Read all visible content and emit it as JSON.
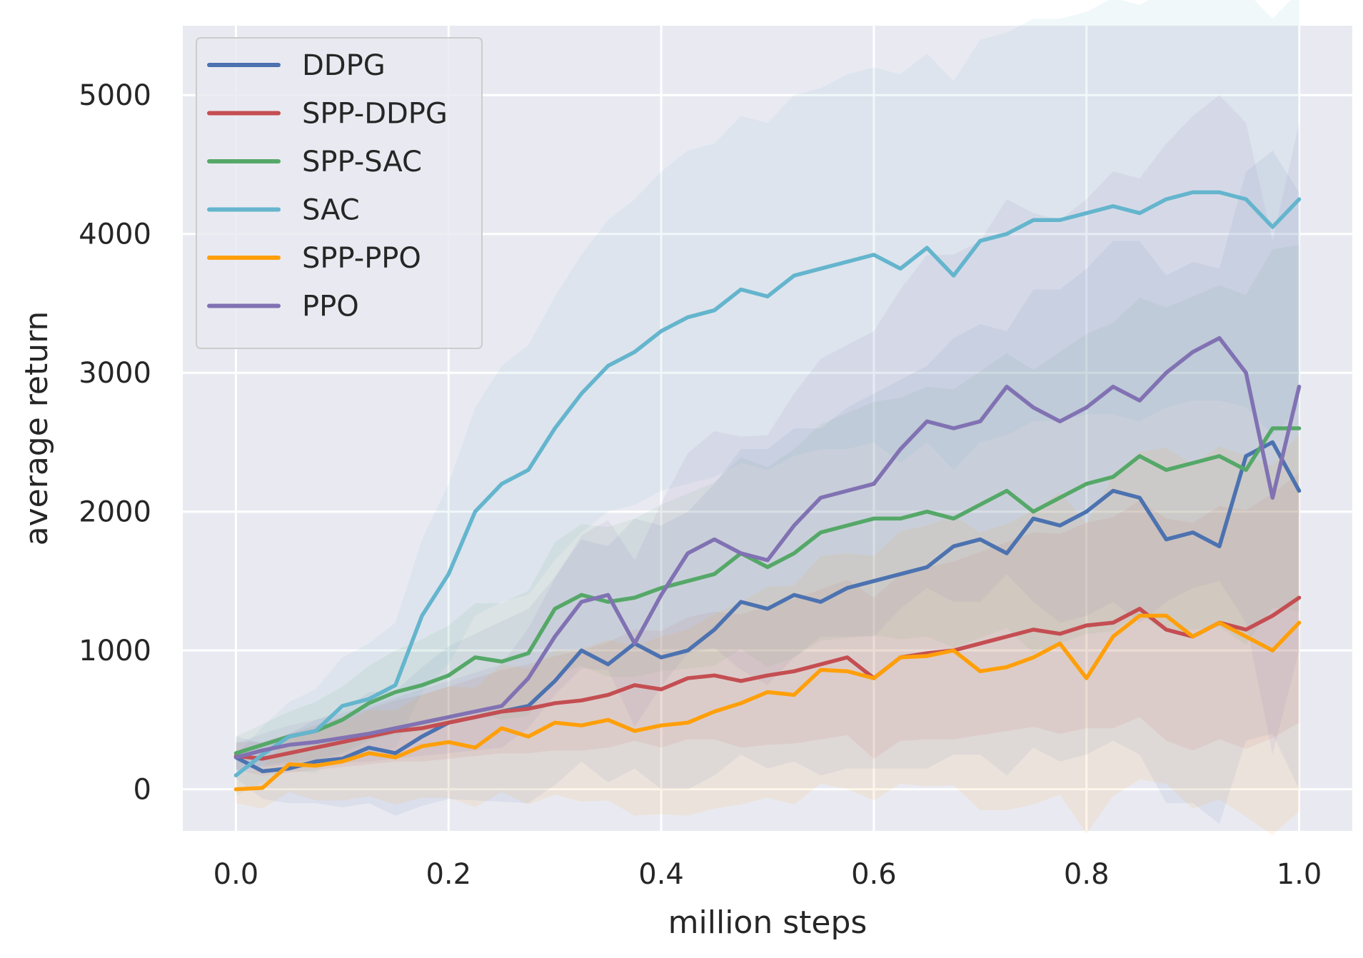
{
  "chart_data": {
    "type": "line",
    "title": "",
    "xlabel": "million steps",
    "ylabel": "average return",
    "xlim": [
      -0.05,
      1.05
    ],
    "ylim": [
      -300,
      5500
    ],
    "xticks": [
      0.0,
      0.2,
      0.4,
      0.6,
      0.8,
      1.0
    ],
    "xtick_labels": [
      "0.0",
      "0.2",
      "0.4",
      "0.6",
      "0.8",
      "1.0"
    ],
    "yticks": [
      0,
      1000,
      2000,
      3000,
      4000,
      5000
    ],
    "ytick_labels": [
      "0",
      "1000",
      "2000",
      "3000",
      "4000",
      "5000"
    ],
    "grid": true,
    "legend_position": "top-left",
    "background": "#e9eaf1",
    "series": [
      {
        "name": "DDPG",
        "color": "#4c72b0",
        "x": [
          0.0,
          0.025,
          0.05,
          0.075,
          0.1,
          0.125,
          0.15,
          0.175,
          0.2,
          0.225,
          0.25,
          0.275,
          0.3,
          0.325,
          0.35,
          0.375,
          0.4,
          0.425,
          0.45,
          0.475,
          0.5,
          0.525,
          0.55,
          0.575,
          0.6,
          0.625,
          0.65,
          0.675,
          0.7,
          0.725,
          0.75,
          0.775,
          0.8,
          0.825,
          0.85,
          0.875,
          0.9,
          0.925,
          0.95,
          0.975,
          1.0
        ],
        "y": [
          230,
          130,
          150,
          200,
          220,
          300,
          260,
          380,
          480,
          520,
          560,
          600,
          780,
          1000,
          900,
          1050,
          950,
          1000,
          1150,
          1350,
          1300,
          1400,
          1350,
          1450,
          1500,
          1550,
          1600,
          1750,
          1800,
          1700,
          1950,
          1900,
          2000,
          2150,
          2100,
          1800,
          1850,
          1750,
          2400,
          2500,
          2150
        ],
        "band": [
          150,
          200,
          250,
          300,
          350,
          400,
          450,
          500,
          550,
          600,
          650,
          700,
          750,
          800,
          850,
          900,
          950,
          1000,
          1050,
          1100,
          1150,
          1200,
          1250,
          1300,
          1350,
          1400,
          1450,
          1500,
          1550,
          1600,
          1650,
          1700,
          1750,
          1800,
          1850,
          1900,
          1950,
          2000,
          2050,
          2100,
          2150
        ]
      },
      {
        "name": "SPP-DDPG",
        "color": "#c44e52",
        "x": [
          0.0,
          0.025,
          0.05,
          0.075,
          0.1,
          0.125,
          0.15,
          0.175,
          0.2,
          0.225,
          0.25,
          0.275,
          0.3,
          0.325,
          0.35,
          0.375,
          0.4,
          0.425,
          0.45,
          0.475,
          0.5,
          0.525,
          0.55,
          0.575,
          0.6,
          0.625,
          0.65,
          0.675,
          0.7,
          0.725,
          0.75,
          0.775,
          0.8,
          0.825,
          0.85,
          0.875,
          0.9,
          0.925,
          0.95,
          0.975,
          1.0
        ],
        "y": [
          240,
          220,
          260,
          300,
          340,
          380,
          420,
          440,
          480,
          520,
          560,
          580,
          620,
          640,
          680,
          750,
          720,
          800,
          820,
          780,
          820,
          850,
          900,
          950,
          800,
          950,
          980,
          1000,
          1050,
          1100,
          1150,
          1120,
          1180,
          1200,
          1300,
          1150,
          1100,
          1200,
          1150,
          1250,
          1380
        ],
        "band": [
          100,
          120,
          140,
          160,
          180,
          200,
          220,
          240,
          260,
          280,
          300,
          320,
          340,
          360,
          380,
          400,
          420,
          440,
          460,
          480,
          500,
          520,
          540,
          560,
          580,
          600,
          620,
          640,
          660,
          680,
          700,
          720,
          740,
          760,
          780,
          800,
          820,
          840,
          860,
          880,
          900
        ]
      },
      {
        "name": "SPP-SAC",
        "color": "#55a868",
        "x": [
          0.0,
          0.025,
          0.05,
          0.075,
          0.1,
          0.125,
          0.15,
          0.175,
          0.2,
          0.225,
          0.25,
          0.275,
          0.3,
          0.325,
          0.35,
          0.375,
          0.4,
          0.425,
          0.45,
          0.475,
          0.5,
          0.525,
          0.55,
          0.575,
          0.6,
          0.625,
          0.65,
          0.675,
          0.7,
          0.725,
          0.75,
          0.775,
          0.8,
          0.825,
          0.85,
          0.875,
          0.9,
          0.925,
          0.95,
          0.975,
          1.0
        ],
        "y": [
          260,
          320,
          380,
          420,
          500,
          620,
          700,
          750,
          820,
          950,
          920,
          980,
          1300,
          1400,
          1350,
          1380,
          1450,
          1500,
          1550,
          1700,
          1600,
          1700,
          1850,
          1900,
          1950,
          1950,
          2000,
          1950,
          2050,
          2150,
          2000,
          2100,
          2200,
          2250,
          2400,
          2300,
          2350,
          2400,
          2300,
          2600,
          2600
        ],
        "band": [
          120,
          150,
          180,
          210,
          240,
          270,
          300,
          330,
          360,
          390,
          420,
          450,
          480,
          510,
          540,
          570,
          600,
          630,
          660,
          690,
          720,
          750,
          780,
          810,
          840,
          870,
          900,
          930,
          960,
          990,
          1020,
          1050,
          1080,
          1110,
          1140,
          1170,
          1200,
          1230,
          1260,
          1290,
          1320
        ]
      },
      {
        "name": "SAC",
        "color": "#64b5cd",
        "x": [
          0.0,
          0.025,
          0.05,
          0.075,
          0.1,
          0.125,
          0.15,
          0.175,
          0.2,
          0.225,
          0.25,
          0.275,
          0.3,
          0.325,
          0.35,
          0.375,
          0.4,
          0.425,
          0.45,
          0.475,
          0.5,
          0.525,
          0.55,
          0.575,
          0.6,
          0.625,
          0.65,
          0.675,
          0.7,
          0.725,
          0.75,
          0.775,
          0.8,
          0.825,
          0.85,
          0.875,
          0.9,
          0.925,
          0.95,
          0.975,
          1.0
        ],
        "y": [
          100,
          250,
          380,
          420,
          600,
          650,
          750,
          1250,
          1550,
          2000,
          2200,
          2300,
          2600,
          2850,
          3050,
          3150,
          3300,
          3400,
          3450,
          3600,
          3550,
          3700,
          3750,
          3800,
          3850,
          3750,
          3900,
          3700,
          3950,
          4000,
          4100,
          4100,
          4150,
          4200,
          4150,
          4250,
          4300,
          4300,
          4250,
          4050,
          4250
        ],
        "band": [
          150,
          200,
          250,
          300,
          350,
          400,
          450,
          550,
          650,
          750,
          850,
          900,
          950,
          1000,
          1050,
          1100,
          1150,
          1200,
          1200,
          1250,
          1250,
          1300,
          1300,
          1350,
          1350,
          1400,
          1400,
          1400,
          1450,
          1450,
          1450,
          1450,
          1450,
          1500,
          1500,
          1500,
          1500,
          1500,
          1500,
          1500,
          1500
        ]
      },
      {
        "name": "SPP-PPO",
        "color": "#ff9f0a",
        "x": [
          0.0,
          0.025,
          0.05,
          0.075,
          0.1,
          0.125,
          0.15,
          0.175,
          0.2,
          0.225,
          0.25,
          0.275,
          0.3,
          0.325,
          0.35,
          0.375,
          0.4,
          0.425,
          0.45,
          0.475,
          0.5,
          0.525,
          0.55,
          0.575,
          0.6,
          0.625,
          0.65,
          0.675,
          0.7,
          0.725,
          0.75,
          0.775,
          0.8,
          0.825,
          0.85,
          0.875,
          0.9,
          0.925,
          0.95,
          0.975,
          1.0
        ],
        "y": [
          0,
          10,
          180,
          170,
          200,
          260,
          230,
          310,
          340,
          300,
          440,
          380,
          480,
          460,
          500,
          420,
          460,
          480,
          560,
          620,
          700,
          680,
          860,
          850,
          800,
          950,
          960,
          1000,
          850,
          880,
          950,
          1050,
          800,
          1100,
          1250,
          1250,
          1100,
          1200,
          1100,
          1000,
          1200
        ],
        "band": [
          100,
          150,
          200,
          250,
          280,
          310,
          340,
          370,
          400,
          430,
          460,
          490,
          520,
          550,
          580,
          610,
          640,
          670,
          700,
          730,
          760,
          790,
          820,
          850,
          880,
          910,
          940,
          970,
          1000,
          1030,
          1060,
          1090,
          1120,
          1150,
          1180,
          1210,
          1240,
          1270,
          1300,
          1330,
          1360
        ]
      },
      {
        "name": "PPO",
        "color": "#8172b3",
        "x": [
          0.0,
          0.025,
          0.05,
          0.075,
          0.1,
          0.125,
          0.15,
          0.175,
          0.2,
          0.225,
          0.25,
          0.275,
          0.3,
          0.325,
          0.35,
          0.375,
          0.4,
          0.425,
          0.45,
          0.475,
          0.5,
          0.525,
          0.55,
          0.575,
          0.6,
          0.625,
          0.65,
          0.675,
          0.7,
          0.725,
          0.75,
          0.775,
          0.8,
          0.825,
          0.85,
          0.875,
          0.9,
          0.925,
          0.95,
          0.975,
          1.0
        ],
        "y": [
          230,
          280,
          320,
          340,
          370,
          400,
          440,
          480,
          520,
          560,
          600,
          800,
          1100,
          1350,
          1400,
          1050,
          1400,
          1700,
          1800,
          1700,
          1650,
          1900,
          2100,
          2150,
          2200,
          2450,
          2650,
          2600,
          2650,
          2900,
          2750,
          2650,
          2750,
          2900,
          2800,
          3000,
          3150,
          3250,
          3000,
          2100,
          2900
        ],
        "band": [
          100,
          120,
          140,
          160,
          180,
          200,
          220,
          240,
          260,
          280,
          300,
          360,
          420,
          480,
          540,
          600,
          660,
          720,
          780,
          840,
          900,
          950,
          1000,
          1050,
          1100,
          1150,
          1200,
          1250,
          1300,
          1350,
          1400,
          1450,
          1500,
          1550,
          1600,
          1650,
          1700,
          1750,
          1800,
          1850,
          1900
        ]
      }
    ]
  }
}
